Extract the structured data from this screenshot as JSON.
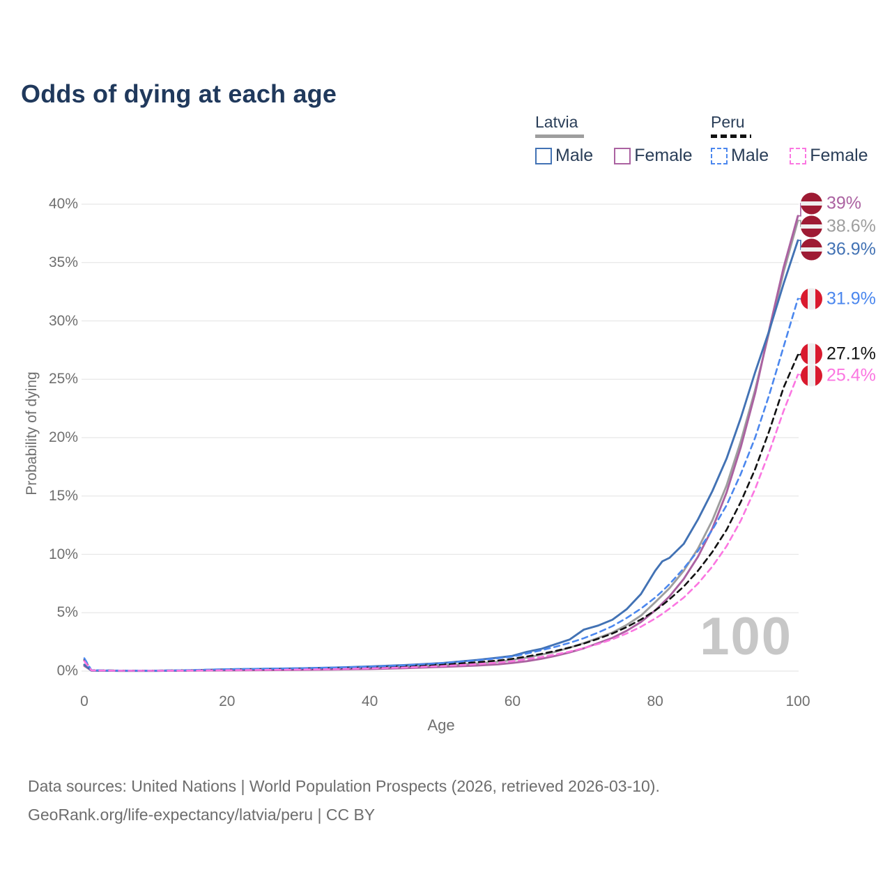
{
  "title": "Odds of dying at each age",
  "legend": {
    "groups": [
      {
        "country": "Latvia",
        "line_style": "solid",
        "line_color": "#9e9e9e",
        "items": [
          {
            "label": "Male",
            "color": "#4272b4"
          },
          {
            "label": "Female",
            "color": "#ab62a1"
          }
        ]
      },
      {
        "country": "Peru",
        "line_style": "dashed",
        "line_color": "#111111",
        "items": [
          {
            "label": "Male",
            "color": "#4b87ee"
          },
          {
            "label": "Female",
            "color": "#fb76e1"
          }
        ]
      }
    ]
  },
  "chart_data": {
    "type": "line",
    "title": "Odds of dying at each age",
    "xlabel": "Age",
    "ylabel": "Probability of dying",
    "xlim": [
      0,
      100
    ],
    "ylim": [
      0,
      40
    ],
    "x_ticks": [
      "0",
      "20",
      "40",
      "60",
      "80",
      "100"
    ],
    "x_tick_values": [
      0,
      20,
      40,
      60,
      80,
      100
    ],
    "y_ticks": [
      "0%",
      "5%",
      "10%",
      "15%",
      "20%",
      "25%",
      "30%",
      "35%",
      "40%"
    ],
    "y_tick_values": [
      0,
      5,
      10,
      15,
      20,
      25,
      30,
      35,
      40
    ],
    "grid": "horizontal",
    "legend_position": "top-right",
    "watermark": "100",
    "x": [
      0,
      1,
      5,
      10,
      15,
      20,
      25,
      30,
      35,
      40,
      45,
      50,
      55,
      58,
      60,
      62,
      64,
      66,
      68,
      70,
      72,
      74,
      76,
      78,
      80,
      81,
      82,
      84,
      86,
      88,
      90,
      92,
      94,
      96,
      98,
      100
    ],
    "series": [
      {
        "name": "Latvia Female",
        "country": "Latvia",
        "sex": "female",
        "style": "solid",
        "color": "#ab62a1",
        "end_label": "39%",
        "end_value": 39.0,
        "flag": "latvia",
        "values": [
          0.45,
          0.04,
          0.02,
          0.02,
          0.04,
          0.06,
          0.08,
          0.1,
          0.13,
          0.18,
          0.25,
          0.35,
          0.48,
          0.58,
          0.7,
          0.85,
          1.05,
          1.3,
          1.6,
          1.95,
          2.4,
          2.85,
          3.45,
          4.2,
          5.2,
          5.8,
          6.4,
          7.9,
          9.8,
          12.2,
          15.3,
          19.2,
          23.8,
          29.3,
          34.6,
          39.0
        ]
      },
      {
        "name": "Latvia Both sexes",
        "country": "Latvia",
        "sex": "both",
        "style": "solid",
        "color": "#9e9e9e",
        "end_label": "38.6%",
        "end_value": 38.6,
        "flag": "latvia",
        "values": [
          0.5,
          0.05,
          0.02,
          0.02,
          0.05,
          0.1,
          0.13,
          0.16,
          0.2,
          0.28,
          0.37,
          0.5,
          0.65,
          0.8,
          0.95,
          1.15,
          1.4,
          1.65,
          2.0,
          2.4,
          2.85,
          3.3,
          3.95,
          4.75,
          5.9,
          6.5,
          7.1,
          8.6,
          10.5,
          12.9,
          15.9,
          19.7,
          24.1,
          29.1,
          34.2,
          38.6
        ]
      },
      {
        "name": "Latvia Male",
        "country": "Latvia",
        "sex": "male",
        "style": "solid",
        "color": "#4272b4",
        "end_label": "36.9%",
        "end_value": 36.9,
        "flag": "latvia",
        "values": [
          0.55,
          0.05,
          0.03,
          0.03,
          0.07,
          0.15,
          0.19,
          0.23,
          0.3,
          0.4,
          0.52,
          0.68,
          0.95,
          1.15,
          1.3,
          1.65,
          1.9,
          2.3,
          2.7,
          3.55,
          3.9,
          4.4,
          5.3,
          6.6,
          8.6,
          9.4,
          9.7,
          10.9,
          13.0,
          15.4,
          18.2,
          21.7,
          25.6,
          29.2,
          33.2,
          36.9
        ]
      },
      {
        "name": "Peru Male",
        "country": "Peru",
        "sex": "male",
        "style": "dashed",
        "color": "#4b87ee",
        "end_label": "31.9%",
        "end_value": 31.9,
        "flag": "peru",
        "values": [
          1.1,
          0.08,
          0.04,
          0.04,
          0.09,
          0.16,
          0.2,
          0.24,
          0.3,
          0.38,
          0.5,
          0.68,
          0.92,
          1.1,
          1.25,
          1.5,
          1.78,
          2.08,
          2.42,
          2.82,
          3.3,
          3.85,
          4.55,
          5.35,
          6.3,
          6.85,
          7.45,
          8.8,
          10.3,
          12.1,
          14.2,
          16.9,
          20.0,
          23.7,
          27.8,
          31.9
        ]
      },
      {
        "name": "Peru Both sexes",
        "country": "Peru",
        "sex": "both",
        "style": "dashed",
        "color": "#111111",
        "end_label": "27.1%",
        "end_value": 27.1,
        "flag": "peru",
        "values": [
          0.95,
          0.07,
          0.04,
          0.04,
          0.07,
          0.12,
          0.15,
          0.18,
          0.23,
          0.3,
          0.4,
          0.55,
          0.76,
          0.91,
          1.05,
          1.25,
          1.47,
          1.72,
          2.02,
          2.36,
          2.77,
          3.22,
          3.77,
          4.42,
          5.2,
          5.65,
          6.15,
          7.25,
          8.6,
          10.2,
          12.1,
          14.5,
          17.3,
          20.6,
          24.3,
          27.1
        ]
      },
      {
        "name": "Peru Female",
        "country": "Peru",
        "sex": "female",
        "style": "dashed",
        "color": "#fb76e1",
        "end_label": "25.4%",
        "end_value": 25.4,
        "flag": "peru",
        "values": [
          0.85,
          0.06,
          0.03,
          0.03,
          0.05,
          0.08,
          0.1,
          0.13,
          0.17,
          0.23,
          0.31,
          0.43,
          0.6,
          0.73,
          0.85,
          1.02,
          1.2,
          1.42,
          1.67,
          1.97,
          2.32,
          2.72,
          3.22,
          3.8,
          4.5,
          4.9,
          5.35,
          6.3,
          7.5,
          8.95,
          10.7,
          12.9,
          15.6,
          18.8,
          22.3,
          25.4
        ]
      }
    ]
  },
  "footer": {
    "line1": "Data sources: United Nations | World Population Prospects (2026, retrieved 2026-03-10).",
    "line2": "GeoRank.org/life-expectancy/latvia/peru | CC BY"
  }
}
